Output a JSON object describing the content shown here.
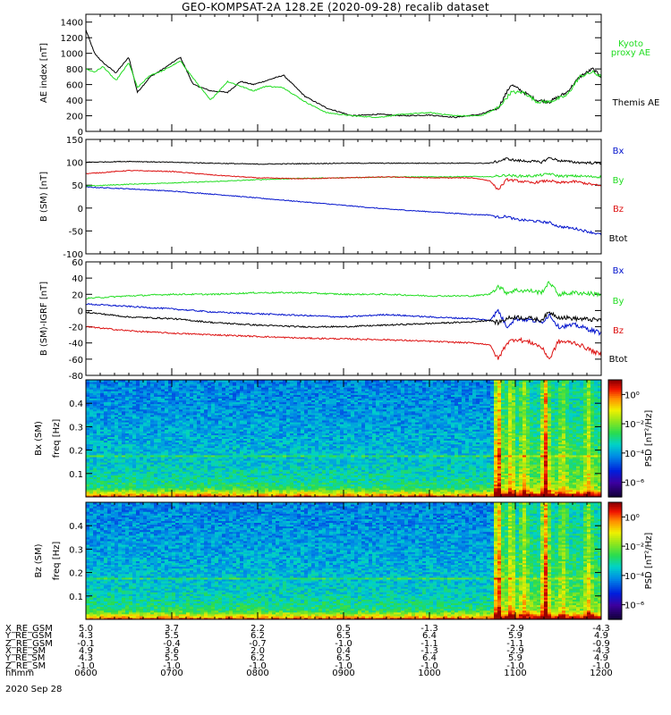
{
  "title": "GEO-KOMPSAT-2A 128.2E (2020-09-28) recalib dataset",
  "date_label": "2020 Sep 28",
  "colors": {
    "black": "#000000",
    "green": "#22dd22",
    "red": "#dd1111",
    "blue": "#0011cc"
  },
  "chart_data": [
    {
      "type": "line",
      "ylabel": "AE index [nT]",
      "ylim": [
        0,
        1500
      ],
      "yticks": [
        "0",
        "200",
        "400",
        "600",
        "800",
        "1000",
        "1200",
        "1400"
      ],
      "x": [
        6.0,
        6.1,
        6.2,
        6.35,
        6.5,
        6.6,
        6.75,
        6.9,
        7.1,
        7.25,
        7.45,
        7.65,
        7.8,
        7.95,
        8.1,
        8.3,
        8.55,
        8.8,
        9.1,
        9.4,
        9.7,
        10.0,
        10.3,
        10.6,
        10.8,
        10.95,
        11.1,
        11.25,
        11.4,
        11.6,
        11.75,
        11.9,
        12.0
      ],
      "series": [
        {
          "name": "Themis AE",
          "color": "black",
          "values": [
            1300,
            1000,
            880,
            750,
            950,
            500,
            700,
            800,
            950,
            600,
            520,
            500,
            640,
            600,
            650,
            720,
            450,
            300,
            200,
            220,
            200,
            210,
            180,
            220,
            300,
            600,
            500,
            400,
            380,
            500,
            700,
            800,
            700
          ]
        },
        {
          "name": "Kyoto proxy AE",
          "color": "green",
          "values": [
            800,
            760,
            830,
            650,
            880,
            560,
            720,
            780,
            900,
            680,
            400,
            640,
            580,
            520,
            580,
            560,
            380,
            240,
            200,
            180,
            220,
            240,
            200,
            200,
            300,
            500,
            500,
            380,
            380,
            460,
            700,
            760,
            700
          ]
        }
      ],
      "legend": [
        "Kyoto proxy AE",
        "Themis AE"
      ]
    },
    {
      "type": "line",
      "ylabel": "B (SM) [nT]",
      "ylim": [
        -100,
        150
      ],
      "yticks": [
        "-100",
        "-50",
        "0",
        "50",
        "100",
        "150"
      ],
      "x": [
        6.0,
        6.5,
        7.0,
        7.5,
        8.0,
        8.5,
        9.0,
        9.5,
        10.0,
        10.5,
        10.7,
        10.8,
        10.9,
        11.0,
        11.2,
        11.3,
        11.4,
        11.5,
        11.7,
        12.0
      ],
      "series": [
        {
          "name": "Bx",
          "color": "blue",
          "values": [
            46,
            42,
            37,
            30,
            22,
            14,
            6,
            -2,
            -8,
            -14,
            -15,
            -20,
            -18,
            -25,
            -28,
            -30,
            -32,
            -40,
            -45,
            -58
          ]
        },
        {
          "name": "By",
          "color": "green",
          "values": [
            48,
            52,
            55,
            58,
            62,
            65,
            66,
            68,
            68,
            69,
            68,
            70,
            72,
            70,
            70,
            72,
            75,
            70,
            70,
            68
          ]
        },
        {
          "name": "Bz",
          "color": "red",
          "values": [
            75,
            82,
            80,
            72,
            66,
            64,
            66,
            68,
            66,
            66,
            60,
            40,
            62,
            60,
            55,
            58,
            60,
            55,
            58,
            48
          ]
        },
        {
          "name": "Btot",
          "color": "black",
          "values": [
            100,
            102,
            100,
            98,
            96,
            97,
            98,
            98,
            98,
            98,
            98,
            102,
            108,
            104,
            102,
            100,
            110,
            104,
            100,
            98
          ]
        }
      ],
      "legend": [
        "Bx",
        "By",
        "Bz",
        "Btot"
      ]
    },
    {
      "type": "line",
      "ylabel": "B (SM)-IGRF [nT]",
      "ylim": [
        -80,
        60
      ],
      "yticks": [
        "-80",
        "-60",
        "-40",
        "-20",
        "0",
        "20",
        "40",
        "60"
      ],
      "x": [
        6.0,
        6.5,
        7.0,
        7.5,
        8.0,
        8.5,
        9.0,
        9.5,
        10.0,
        10.5,
        10.7,
        10.8,
        10.9,
        11.0,
        11.2,
        11.3,
        11.4,
        11.5,
        11.7,
        12.0
      ],
      "series": [
        {
          "name": "Bx",
          "color": "blue",
          "values": [
            8,
            5,
            2,
            -2,
            -4,
            -6,
            -8,
            -5,
            -8,
            -10,
            -12,
            0,
            -20,
            -10,
            -12,
            -15,
            -5,
            -20,
            -18,
            -28
          ]
        },
        {
          "name": "By",
          "color": "green",
          "values": [
            15,
            18,
            20,
            20,
            22,
            22,
            20,
            20,
            18,
            18,
            20,
            30,
            22,
            25,
            24,
            22,
            35,
            20,
            22,
            20
          ]
        },
        {
          "name": "Bz",
          "color": "red",
          "values": [
            -20,
            -25,
            -28,
            -30,
            -32,
            -34,
            -35,
            -36,
            -38,
            -40,
            -42,
            -60,
            -40,
            -35,
            -40,
            -45,
            -60,
            -38,
            -40,
            -55
          ]
        },
        {
          "name": "Btot",
          "color": "black",
          "values": [
            -2,
            -8,
            -10,
            -15,
            -18,
            -20,
            -20,
            -18,
            -16,
            -14,
            -12,
            -15,
            -10,
            -8,
            -10,
            -12,
            -2,
            -8,
            -10,
            -12
          ]
        }
      ],
      "legend": [
        "Bx",
        "By",
        "Bz",
        "Btot"
      ]
    },
    {
      "type": "heatmap",
      "ylabel": "Bx (SM) freq [Hz]",
      "ylim": [
        0,
        0.5
      ],
      "yticks": [
        "0.1",
        "0.2",
        "0.3",
        "0.4"
      ],
      "colorbar_label": "PSD [nT²/Hz]",
      "colorbar_ticks": [
        "10⁰",
        "10⁻²",
        "10⁻⁴",
        "10⁻⁶"
      ],
      "colorbar_log_range": [
        -7,
        1
      ]
    },
    {
      "type": "heatmap",
      "ylabel": "Bz (SM) freq [Hz]",
      "ylim": [
        0,
        0.5
      ],
      "yticks": [
        "0.1",
        "0.2",
        "0.3",
        "0.4"
      ],
      "colorbar_label": "PSD [nT²/Hz]",
      "colorbar_ticks": [
        "10⁰",
        "10⁻²",
        "10⁻⁴",
        "10⁻⁶"
      ],
      "colorbar_log_range": [
        -7,
        1
      ]
    }
  ],
  "ephemeris": {
    "row_labels": [
      "X_RE_GSM",
      "Y_RE_GSM",
      "Z_RE_GSM",
      "X_RE_SM",
      "Y_RE_SM",
      "Z_RE_SM",
      "hhmm"
    ],
    "columns": [
      [
        "5.0",
        "4.3",
        "-0.1",
        "4.9",
        "4.3",
        "-1.0",
        "0600"
      ],
      [
        "3.7",
        "5.5",
        "-0.4",
        "3.6",
        "5.5",
        "-1.0",
        "0700"
      ],
      [
        "2.2",
        "6.2",
        "-0.7",
        "2.0",
        "6.2",
        "-1.0",
        "0800"
      ],
      [
        "0.5",
        "6.5",
        "-1.0",
        "0.4",
        "6.5",
        "-1.0",
        "0900"
      ],
      [
        "-1.3",
        "6.4",
        "-1.1",
        "-1.3",
        "6.4",
        "-1.0",
        "1000"
      ],
      [
        "-2.9",
        "5.9",
        "-1.1",
        "-2.9",
        "5.9",
        "-1.0",
        "1100"
      ],
      [
        "-4.3",
        "4.9",
        "-0.9",
        "-4.3",
        "4.9",
        "-1.0",
        "1200"
      ]
    ]
  }
}
